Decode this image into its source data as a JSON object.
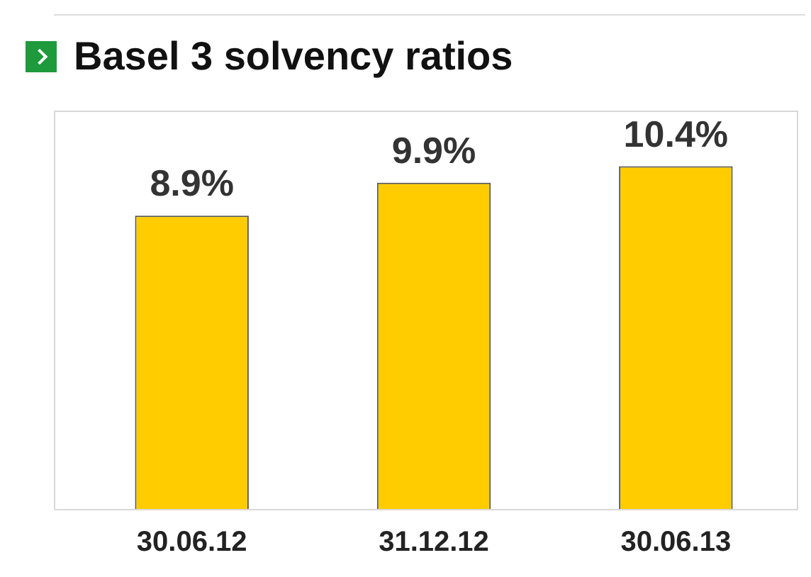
{
  "chart_data": {
    "type": "bar",
    "title": "Basel 3 solvency ratios",
    "categories": [
      "30.06.12",
      "31.12.12",
      "30.06.13"
    ],
    "values": [
      8.9,
      9.9,
      10.4
    ],
    "color": "#ffcc00",
    "value_labels": [
      "8.9%",
      "9.9%",
      "10.4%"
    ],
    "grid": false,
    "legend": false
  }
}
